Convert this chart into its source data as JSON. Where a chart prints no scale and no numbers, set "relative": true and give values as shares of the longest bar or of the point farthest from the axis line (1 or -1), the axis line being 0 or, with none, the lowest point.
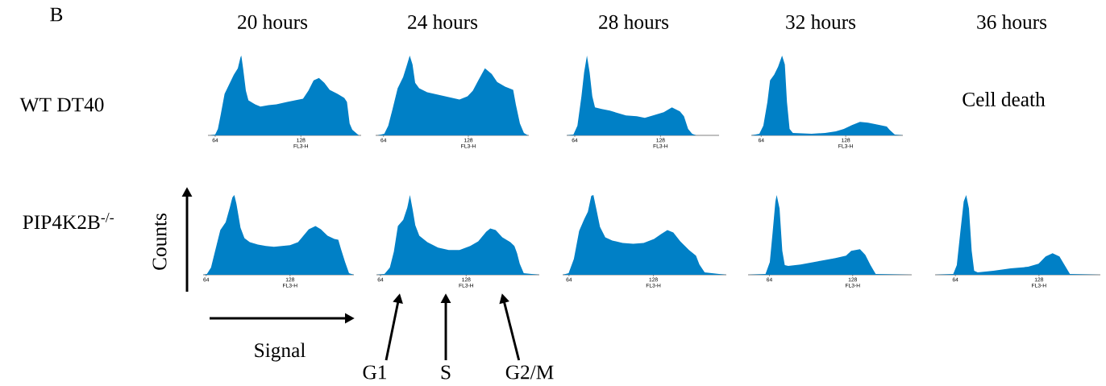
{
  "chart_data": [
    {
      "type": "area",
      "title": "20 hours",
      "relative": true,
      "xlim": [
        58.6,
        173
      ],
      "xticks": [
        64,
        128
      ],
      "xlabel": "FL3-H",
      "color": "#0080c6",
      "annotations": [
        "B",
        "WT DT40"
      ],
      "x": [
        60.0,
        64.0,
        66.0,
        68.0,
        71.0,
        73.9,
        77.9,
        80.9,
        82.9,
        83.5,
        84.9,
        86.9,
        88.8,
        93.8,
        97.8,
        103.8,
        109.7,
        117.7,
        123.6,
        129.6,
        133.6,
        137.5,
        141.5,
        145.5,
        149.5,
        155.4,
        160.4,
        162.4,
        164.4,
        166.4,
        171.3
      ],
      "values": [
        0,
        0.01,
        0.08,
        0.25,
        0.52,
        0.62,
        0.76,
        0.84,
        0.98,
        1,
        0.83,
        0.56,
        0.44,
        0.39,
        0.36,
        0.38,
        0.39,
        0.42,
        0.44,
        0.46,
        0.56,
        0.69,
        0.72,
        0.66,
        0.57,
        0.52,
        0.47,
        0.42,
        0.15,
        0.07,
        0
      ]
    },
    {
      "type": "area",
      "title": "24 hours",
      "relative": true,
      "xlim": [
        58.1,
        173.6
      ],
      "xticks": [
        64,
        128
      ],
      "xlabel": "FL3-H",
      "color": "#0080c6",
      "x": [
        59.5,
        64.6,
        67.6,
        70.7,
        74.7,
        78.8,
        81.8,
        83.8,
        85.9,
        87.9,
        90.9,
        97.0,
        105.1,
        113.2,
        121.3,
        127.4,
        131.4,
        135.5,
        140.5,
        145.6,
        149.7,
        155.7,
        161.8,
        163.8,
        166.9,
        169.9,
        172.9
      ],
      "values": [
        0,
        0.02,
        0.12,
        0.32,
        0.59,
        0.73,
        0.89,
        1,
        0.89,
        0.66,
        0.59,
        0.54,
        0.51,
        0.48,
        0.45,
        0.49,
        0.56,
        0.69,
        0.84,
        0.77,
        0.67,
        0.61,
        0.57,
        0.39,
        0.15,
        0.03,
        0
      ]
    },
    {
      "type": "area",
      "title": "28 hours",
      "relative": true,
      "xlim": [
        58.0,
        171.7
      ],
      "xticks": [
        64,
        128
      ],
      "xlabel": "FL3-H",
      "color": "#0080c6",
      "x": [
        58.0,
        63.0,
        66.0,
        69.0,
        71.0,
        73.1,
        75.1,
        77.1,
        79.1,
        84.1,
        90.2,
        96.2,
        102.2,
        110.3,
        116.3,
        122.4,
        130.4,
        136.5,
        142.5,
        145.5,
        148.6,
        151.6,
        154.6,
        171.7
      ],
      "values": [
        0,
        0.01,
        0.12,
        0.49,
        0.79,
        1,
        0.79,
        0.49,
        0.35,
        0.33,
        0.31,
        0.28,
        0.25,
        0.24,
        0.22,
        0.25,
        0.29,
        0.35,
        0.3,
        0.24,
        0.08,
        0.02,
        0,
        0
      ]
    },
    {
      "type": "area",
      "title": "32 hours",
      "relative": true,
      "xlim": [
        56.5,
        171.3
      ],
      "xticks": [
        64,
        128
      ],
      "xlabel": "FL3-H",
      "color": "#0080c6",
      "x": [
        56.5,
        62.6,
        65.6,
        68.7,
        70.7,
        73.8,
        76.8,
        79.8,
        81.9,
        83.5,
        85.5,
        88.0,
        102.2,
        112.4,
        120.5,
        126.6,
        132.7,
        138.8,
        144.9,
        151.0,
        159.1,
        161.2,
        165.2,
        171.3
      ],
      "values": [
        0,
        0.02,
        0.12,
        0.42,
        0.69,
        0.76,
        0.86,
        1,
        0.89,
        0.42,
        0.08,
        0.03,
        0.02,
        0.03,
        0.05,
        0.08,
        0.13,
        0.17,
        0.16,
        0.14,
        0.11,
        0.07,
        0.01,
        0
      ]
    },
    {
      "type": "other",
      "title": "36 hours",
      "annotations": [
        "Cell death"
      ]
    },
    {
      "type": "area",
      "relative": true,
      "xlim": [
        61.7,
        176.7
      ],
      "xticks": [
        64,
        128
      ],
      "xlabel": "FL3-H",
      "ylabel": "Counts",
      "color": "#0080c6",
      "annotations": [
        "PIP4K2B$^{-/-}$",
        "Signal"
      ],
      "x": [
        61.7,
        64.6,
        67.7,
        70.7,
        74.8,
        78.9,
        82.0,
        84.0,
        85.5,
        87.1,
        90.2,
        93.2,
        97.3,
        103.5,
        109.6,
        115.7,
        121.9,
        128.0,
        134.1,
        138.2,
        142.3,
        147.4,
        151.5,
        156.6,
        161.8,
        164.8,
        166.9,
        170.0,
        173.0,
        176.7
      ],
      "values": [
        0,
        0.01,
        0.09,
        0.29,
        0.56,
        0.66,
        0.84,
        0.97,
        1,
        0.89,
        0.59,
        0.46,
        0.41,
        0.38,
        0.36,
        0.35,
        0.36,
        0.37,
        0.41,
        0.49,
        0.57,
        0.61,
        0.57,
        0.49,
        0.45,
        0.44,
        0.32,
        0.16,
        0.02,
        0
      ]
    },
    {
      "type": "area",
      "relative": true,
      "xlim": [
        61.0,
        182.6
      ],
      "xticks": [
        64,
        128
      ],
      "xlabel": "FL3-H",
      "color": "#0080c6",
      "annotations": [
        "G1",
        "S",
        "G2/M"
      ],
      "x": [
        61.0,
        67.0,
        71.0,
        74.0,
        77.0,
        81.0,
        84.0,
        86.0,
        88.0,
        90.0,
        93.0,
        99.0,
        107.0,
        115.0,
        123.0,
        131.0,
        137.0,
        143.0,
        146.0,
        150.0,
        155.0,
        161.0,
        164.0,
        166.0,
        168.0,
        171.0,
        182.6
      ],
      "values": [
        0,
        0.01,
        0.09,
        0.29,
        0.61,
        0.69,
        0.84,
        1,
        0.82,
        0.62,
        0.49,
        0.41,
        0.34,
        0.31,
        0.31,
        0.36,
        0.42,
        0.54,
        0.58,
        0.56,
        0.47,
        0.41,
        0.36,
        0.27,
        0.14,
        0.02,
        0
      ]
    },
    {
      "type": "area",
      "relative": true,
      "xlim": [
        59.2,
        183.3
      ],
      "xticks": [
        64,
        128
      ],
      "xlabel": "FL3-H",
      "color": "#0080c6",
      "x": [
        59.2,
        63.7,
        67.7,
        71.7,
        75.6,
        78.3,
        80.9,
        82.5,
        84.9,
        87.5,
        91.5,
        96.8,
        104.7,
        112.7,
        120.6,
        128.5,
        133.8,
        138.6,
        143.1,
        148.4,
        155.0,
        160.3,
        162.9,
        166.9,
        183.3
      ],
      "values": [
        0,
        0.02,
        0.2,
        0.55,
        0.7,
        0.79,
        0.99,
        1,
        0.81,
        0.6,
        0.47,
        0.43,
        0.4,
        0.39,
        0.4,
        0.45,
        0.51,
        0.56,
        0.53,
        0.42,
        0.31,
        0.24,
        0.13,
        0.03,
        0
      ]
    },
    {
      "type": "area",
      "relative": true,
      "xlim": [
        47.6,
        173.4
      ],
      "xticks": [
        64,
        128
      ],
      "xlabel": "FL3-H",
      "color": "#0080c6",
      "x": [
        47.6,
        61.0,
        64.3,
        66.4,
        68.6,
        69.6,
        71.8,
        73.9,
        75.8,
        78.5,
        87.9,
        101.4,
        114.8,
        122.9,
        126.9,
        133.6,
        137.7,
        141.7,
        145.7,
        173.4
      ],
      "values": [
        0,
        0.01,
        0.16,
        0.52,
        0.92,
        1,
        0.83,
        0.3,
        0.12,
        0.11,
        0.13,
        0.17,
        0.21,
        0.24,
        0.3,
        0.32,
        0.25,
        0.12,
        0.01,
        0
      ]
    },
    {
      "type": "area",
      "relative": true,
      "xlim": [
        48.5,
        175.0
      ],
      "xticks": [
        64,
        128
      ],
      "xlabel": "FL3-H",
      "color": "#0080c6",
      "x": [
        48.5,
        62.4,
        65.1,
        67.7,
        70.4,
        72.3,
        74.4,
        76.5,
        78.4,
        81.1,
        93.1,
        106.4,
        119.7,
        127.7,
        133.1,
        138.4,
        143.7,
        147.7,
        151.7,
        175.0
      ],
      "values": [
        0,
        0.01,
        0.12,
        0.52,
        0.92,
        1,
        0.83,
        0.3,
        0.05,
        0.03,
        0.05,
        0.08,
        0.1,
        0.14,
        0.23,
        0.27,
        0.23,
        0.12,
        0.01,
        0
      ]
    }
  ]
}
